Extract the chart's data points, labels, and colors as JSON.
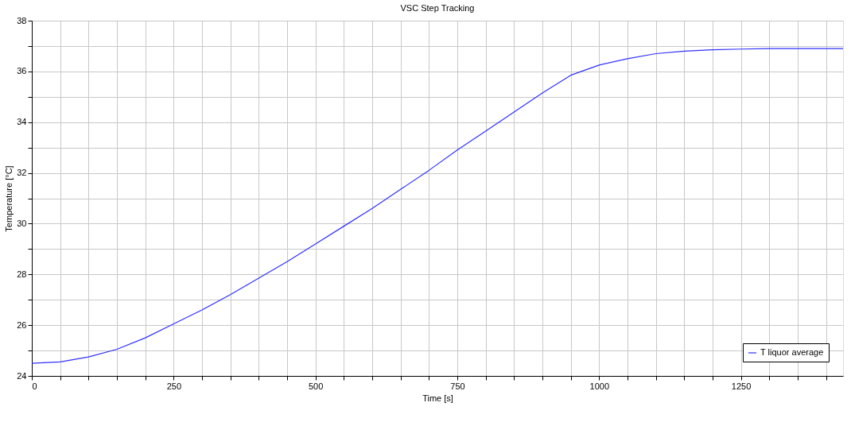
{
  "chart_data": {
    "type": "line",
    "title": "VSC Step Tracking",
    "xlabel": "Time [s]",
    "ylabel": "Temperature [°C]",
    "x": [
      0,
      50,
      100,
      150,
      200,
      250,
      300,
      350,
      400,
      450,
      500,
      550,
      600,
      650,
      700,
      750,
      800,
      850,
      900,
      950,
      1000,
      1050,
      1100,
      1150,
      1200,
      1250,
      1300,
      1350,
      1430
    ],
    "series": [
      {
        "name": "T liquor average",
        "color": "#3030ff",
        "values": [
          24.5,
          24.55,
          24.75,
          25.05,
          25.5,
          26.05,
          26.6,
          27.2,
          27.85,
          28.5,
          29.2,
          29.9,
          30.6,
          31.35,
          32.1,
          32.9,
          33.65,
          34.4,
          35.15,
          35.85,
          36.25,
          36.5,
          36.7,
          36.8,
          36.85,
          36.88,
          36.9,
          36.9,
          36.9
        ]
      }
    ],
    "xlim": [
      0,
      1430
    ],
    "ylim": [
      24,
      38
    ],
    "xticks": [
      0,
      {
        "value": 50,
        "label": null
      },
      {
        "value": 100,
        "label": null
      },
      {
        "value": 150,
        "label": null
      },
      {
        "value": 200,
        "label": null
      },
      250,
      {
        "value": 300,
        "label": null
      },
      {
        "value": 350,
        "label": null
      },
      {
        "value": 400,
        "label": null
      },
      {
        "value": 450,
        "label": null
      },
      500,
      {
        "value": 550,
        "label": null
      },
      {
        "value": 600,
        "label": null
      },
      {
        "value": 650,
        "label": null
      },
      {
        "value": 700,
        "label": null
      },
      750,
      {
        "value": 800,
        "label": null
      },
      {
        "value": 850,
        "label": null
      },
      {
        "value": 900,
        "label": null
      },
      {
        "value": 950,
        "label": null
      },
      1000,
      {
        "value": 1050,
        "label": null
      },
      {
        "value": 1100,
        "label": null
      },
      {
        "value": 1150,
        "label": null
      },
      {
        "value": 1200,
        "label": null
      },
      1250,
      {
        "value": 1300,
        "label": null
      },
      {
        "value": 1350,
        "label": null
      },
      {
        "value": 1400,
        "label": null
      }
    ],
    "yticks": [
      24,
      {
        "value": 25,
        "label": null
      },
      26,
      {
        "value": 27,
        "label": null
      },
      28,
      {
        "value": 29,
        "label": null
      },
      30,
      {
        "value": 31,
        "label": null
      },
      32,
      {
        "value": 33,
        "label": null
      },
      34,
      {
        "value": 35,
        "label": null
      },
      36,
      {
        "value": 37,
        "label": null
      },
      38
    ],
    "grid": true,
    "legend": "bottom right",
    "marker": "none",
    "line_style": "solid"
  }
}
